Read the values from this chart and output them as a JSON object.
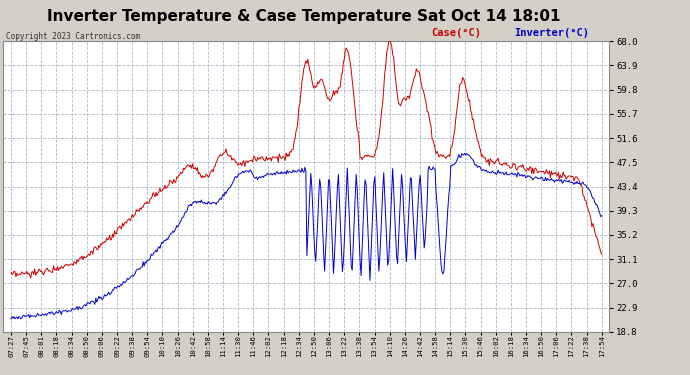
{
  "title": "Inverter Temperature & Case Temperature Sat Oct 14 18:01",
  "copyright": "Copyright 2023 Cartronics.com",
  "legend_case": "Case(°C)",
  "legend_inverter": "Inverter(°C)",
  "y_ticks": [
    18.8,
    22.9,
    27.0,
    31.1,
    35.2,
    39.3,
    43.4,
    47.5,
    51.6,
    55.7,
    59.8,
    63.9,
    68.0
  ],
  "ylim": [
    18.8,
    68.0
  ],
  "background_color": "#d4d0c8",
  "plot_bg_color": "#ffffff",
  "grid_color": "#b0b8c8",
  "case_color": "#cc0000",
  "inverter_color": "#0000cc",
  "title_fontsize": 11,
  "x_labels": [
    "07:27",
    "07:45",
    "08:01",
    "08:18",
    "08:34",
    "08:50",
    "09:06",
    "09:22",
    "09:38",
    "09:54",
    "10:10",
    "10:26",
    "10:42",
    "10:58",
    "11:14",
    "11:30",
    "11:46",
    "12:02",
    "12:18",
    "12:34",
    "12:50",
    "13:06",
    "13:22",
    "13:38",
    "13:54",
    "14:10",
    "14:26",
    "14:42",
    "14:58",
    "15:14",
    "15:30",
    "15:46",
    "16:02",
    "16:18",
    "16:34",
    "16:50",
    "17:06",
    "17:22",
    "17:38",
    "17:54"
  ]
}
